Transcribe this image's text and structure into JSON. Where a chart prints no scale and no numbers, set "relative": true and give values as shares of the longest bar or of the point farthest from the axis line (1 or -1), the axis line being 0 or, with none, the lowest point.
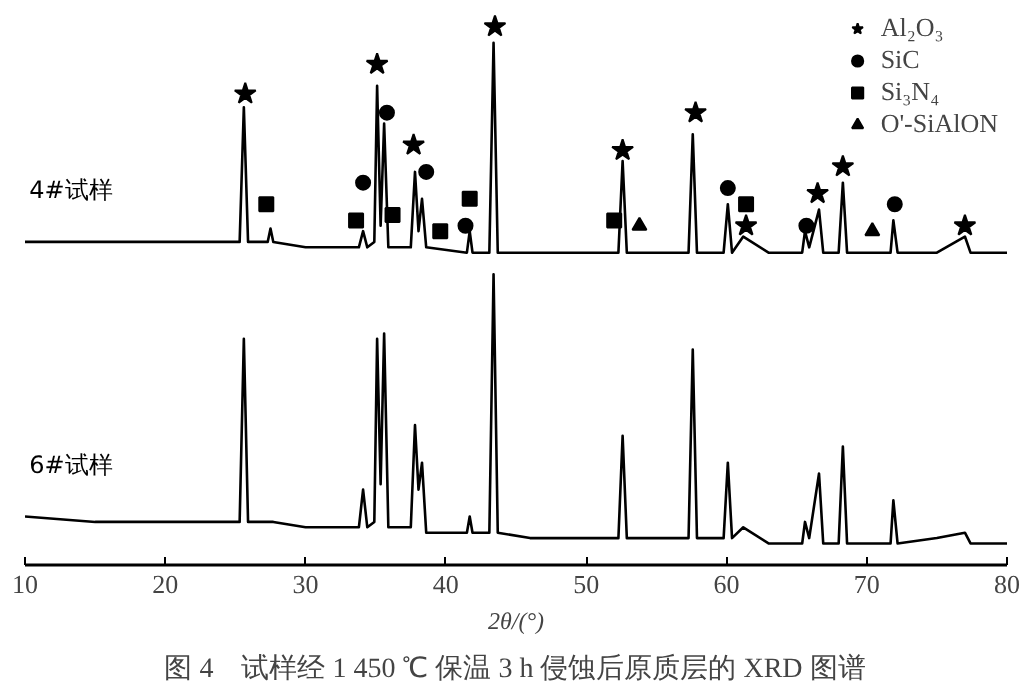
{
  "chart_data": {
    "type": "line",
    "title": "图 4　试样经 1 450 ℃ 保温 3 h 侵蚀后原质层的 XRD 图谱",
    "xlabel": "2θ/(°)",
    "relative": true,
    "grid": false,
    "legend": "top right",
    "line_style": "solid",
    "marker": "none",
    "x": [
      10,
      15,
      20,
      25.3,
      25.6,
      25.9,
      27.3,
      27.5,
      27.7,
      30,
      33.8,
      34.1,
      34.4,
      34.9,
      35.1,
      35.35,
      35.6,
      35.9,
      37.5,
      37.8,
      38.05,
      38.3,
      38.6,
      41.5,
      41.7,
      41.9,
      43.1,
      43.4,
      43.7,
      46,
      50,
      52.3,
      52.6,
      52.9,
      55,
      57.3,
      57.6,
      57.9,
      59.8,
      60.1,
      60.4,
      61.2,
      63,
      65.4,
      65.6,
      65.9,
      66.6,
      66.9,
      68.0,
      68.3,
      68.6,
      71.7,
      71.9,
      72.2,
      75,
      77.0,
      77.4,
      80
    ],
    "xlim": [
      10,
      80
    ],
    "xticks": [
      10,
      20,
      30,
      40,
      50,
      60,
      70,
      80
    ],
    "series": [
      {
        "name": "4#试样",
        "color": "#000000",
        "values": [
          0.6,
          0.6,
          0.6,
          0.6,
          0.85,
          0.6,
          0.6,
          0.625,
          0.6,
          0.59,
          0.59,
          0.62,
          0.59,
          0.6,
          0.89,
          0.63,
          0.82,
          0.59,
          0.59,
          0.73,
          0.62,
          0.68,
          0.59,
          0.58,
          0.62,
          0.58,
          0.58,
          0.97,
          0.58,
          0.58,
          0.58,
          0.58,
          0.75,
          0.58,
          0.58,
          0.58,
          0.8,
          0.58,
          0.58,
          0.67,
          0.58,
          0.61,
          0.58,
          0.58,
          0.62,
          0.59,
          0.66,
          0.58,
          0.58,
          0.71,
          0.58,
          0.58,
          0.64,
          0.58,
          0.58,
          0.61,
          0.58,
          0.58
        ]
      },
      {
        "name": "6#试样",
        "color": "#000000",
        "values": [
          0.09,
          0.08,
          0.08,
          0.08,
          0.42,
          0.08,
          0.08,
          0.08,
          0.08,
          0.07,
          0.07,
          0.14,
          0.07,
          0.08,
          0.42,
          0.15,
          0.43,
          0.07,
          0.07,
          0.26,
          0.14,
          0.19,
          0.06,
          0.06,
          0.09,
          0.06,
          0.06,
          0.54,
          0.06,
          0.05,
          0.05,
          0.05,
          0.24,
          0.05,
          0.05,
          0.05,
          0.4,
          0.05,
          0.05,
          0.19,
          0.05,
          0.07,
          0.04,
          0.04,
          0.08,
          0.05,
          0.17,
          0.04,
          0.04,
          0.22,
          0.04,
          0.04,
          0.12,
          0.04,
          0.05,
          0.06,
          0.04,
          0.04
        ]
      },
      {
        "name": "Al₂O₃",
        "type": "scatter",
        "marker": "star",
        "color": "#000000",
        "x": [
          25.7,
          35.1,
          37.7,
          43.5,
          52.6,
          57.8,
          61.4,
          66.5,
          68.3,
          77.0
        ],
        "values": [
          0.875,
          0.93,
          0.78,
          1.0,
          0.77,
          0.84,
          0.63,
          0.69,
          0.74,
          0.63
        ]
      },
      {
        "name": "SiC",
        "type": "scatter",
        "marker": "circle",
        "color": "#000000",
        "x": [
          34.1,
          35.8,
          38.6,
          41.4,
          60.1,
          65.7,
          72.0
        ],
        "values": [
          0.71,
          0.84,
          0.73,
          0.63,
          0.7,
          0.63,
          0.67
        ]
      },
      {
        "name": "Si₃N₄",
        "type": "scatter",
        "marker": "square",
        "color": "#000000",
        "x": [
          27.2,
          33.6,
          36.2,
          39.6,
          41.7,
          52.0,
          61.4
        ],
        "values": [
          0.67,
          0.64,
          0.65,
          0.62,
          0.68,
          0.64,
          0.67
        ]
      },
      {
        "name": "O'-SiAlON",
        "type": "scatter",
        "marker": "triangle",
        "color": "#000000",
        "x": [
          53.8,
          70.4
        ],
        "values": [
          0.63,
          0.62
        ]
      }
    ]
  }
}
